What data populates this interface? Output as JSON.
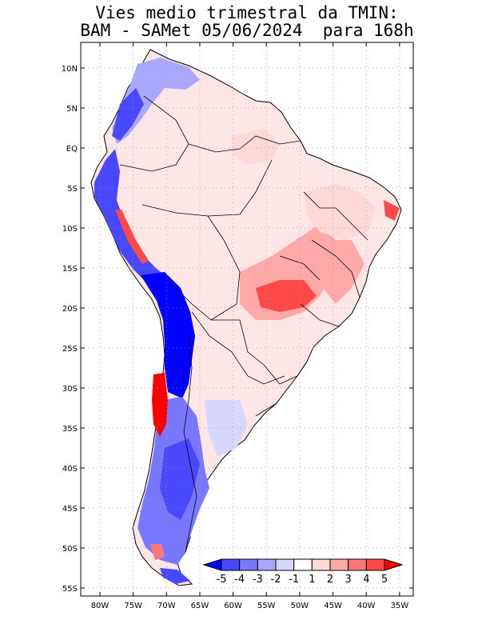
{
  "title": {
    "line1": "Vies medio trimestral da TMIN:",
    "line2": "BAM - SAMet 05/06/2024  para 168h"
  },
  "axes": {
    "lon_ticks": [
      "80W",
      "75W",
      "70W",
      "65W",
      "60W",
      "55W",
      "50W",
      "45W",
      "40W",
      "35W"
    ],
    "lat_ticks": [
      "10N",
      "5N",
      "EQ",
      "5S",
      "10S",
      "15S",
      "20S",
      "25S",
      "30S",
      "35S",
      "40S",
      "45S",
      "50S",
      "55S"
    ],
    "lon_range": [
      -83,
      -34
    ],
    "lat_range": [
      -56,
      13
    ],
    "grid": true
  },
  "colorbar": {
    "labels": [
      "-5",
      "-4",
      "-3",
      "-2",
      "-1",
      "1",
      "2",
      "3",
      "4",
      "5"
    ],
    "colors": [
      "#0000ff",
      "#4848ff",
      "#7878ff",
      "#a8a8ff",
      "#d8d8ff",
      "#ffffff",
      "#ffd8d8",
      "#ffa8a8",
      "#ff7878",
      "#ff4848",
      "#ff0000"
    ]
  },
  "map_colors": {
    "land_base": "#ffe4e4",
    "ocean": "#ffffff",
    "boundary": "#000000",
    "grid": "#999999"
  }
}
